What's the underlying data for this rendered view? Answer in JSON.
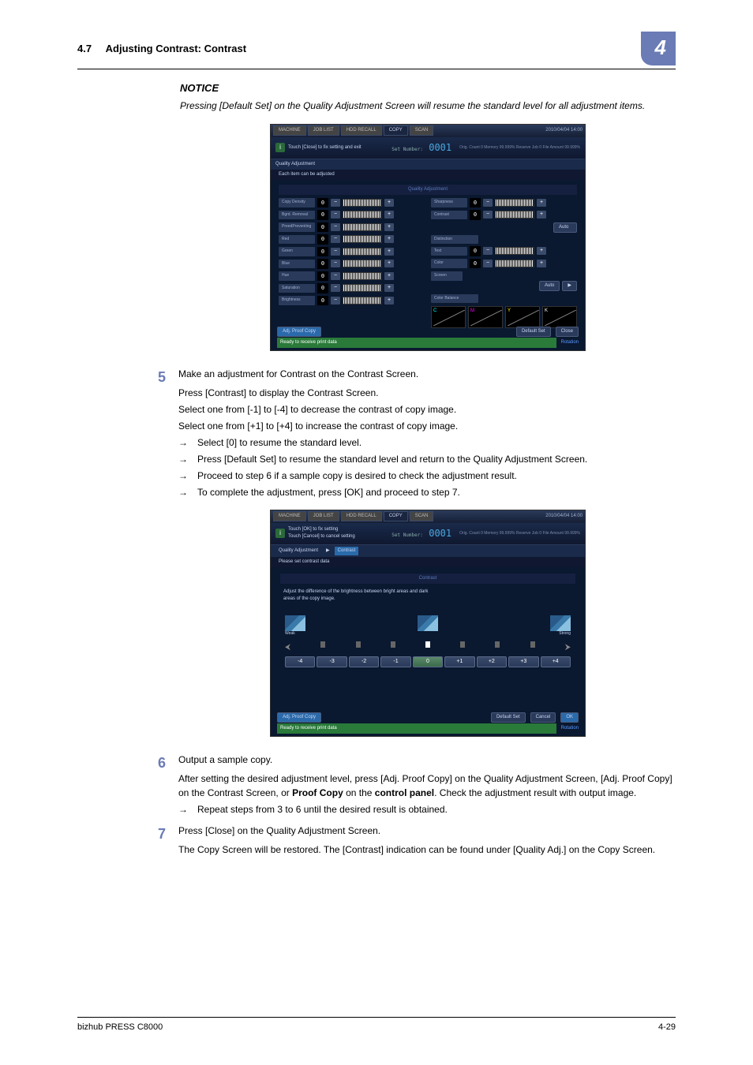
{
  "header": {
    "section": "4.7",
    "title": "Adjusting Contrast: Contrast",
    "chapter": "4"
  },
  "notice": {
    "title": "NOTICE",
    "body": "Pressing [Default Set] on the Quality Adjustment Screen will resume the standard level for all adjustment items."
  },
  "screenshot1": {
    "tabs": [
      "MACHINE",
      "JOB LIST",
      "HDD RECALL",
      "COPY",
      "SCAN"
    ],
    "timestamp": "2010/04/04 14:00",
    "info_text": "Touch [Close] to fix setting and exit",
    "set_number_label": "Set Number:",
    "set_number": "0001",
    "stats": "Orig. Count       0  Memory        99.999%\nReserve Job     0  File Amount  99.999%",
    "qa_label": "Quality Adjustment",
    "sub_label": "Each item can be adjusted",
    "section_title": "Quality Adjustment",
    "left_items": [
      {
        "label": "Copy Density",
        "val": "0"
      },
      {
        "label": "Bgrd. Removal",
        "val": "0"
      },
      {
        "label": "PreedPreventing",
        "val": "0"
      },
      {
        "label": "Red",
        "val": "0"
      },
      {
        "label": "Green",
        "val": "0"
      },
      {
        "label": "Blue",
        "val": "0"
      },
      {
        "label": "Hue",
        "val": "0"
      },
      {
        "label": "Saturation",
        "val": "0"
      },
      {
        "label": "Brightness",
        "val": "0"
      }
    ],
    "right_items": [
      {
        "label": "Sharpness",
        "val": "0"
      },
      {
        "label": "Contrast",
        "val": "0"
      }
    ],
    "auto_btn": "Auto",
    "distinction": "Distinction",
    "dist_items": [
      {
        "label": "Text",
        "val": "0"
      },
      {
        "label": "Color",
        "val": "0"
      }
    ],
    "screen": "Screen",
    "screen_auto": "Auto",
    "color_balance": "Color Balance",
    "balance_letters": [
      "C",
      "M",
      "Y",
      "K"
    ],
    "footer_buttons": [
      "Adj. Proof Copy",
      "Default Set",
      "Close"
    ],
    "ready": "Ready to receive print data",
    "rotation": "Rotation"
  },
  "step5": {
    "num": "5",
    "title": "Make an adjustment for Contrast on the Contrast Screen.",
    "lines": [
      "Press [Contrast] to display the Contrast Screen.",
      "Select one from [-1] to [-4] to decrease the contrast of copy image.",
      "Select one from [+1] to [+4] to increase the contrast of copy image."
    ],
    "arrows": [
      "Select [0] to resume the standard level.",
      "Press [Default Set] to resume the standard level and return to the Quality Adjustment Screen.",
      "Proceed to step 6 if a sample copy is desired to check the adjustment result.",
      "To complete the adjustment, press [OK] and proceed to step 7."
    ]
  },
  "screenshot2": {
    "info_text": "Touch [OK] to fix setting\nTouch [Cancel] to cancel setting",
    "breadcrumb": [
      "Quality Adjustment",
      "▶",
      "Contrast"
    ],
    "sub_label": "Please set contrast data",
    "section_title": "Contrast",
    "desc": "Adjust the difference of the brightness between bright areas and dark\nareas of the copy image.",
    "weak": "Weak",
    "strong": "Strong",
    "buttons": [
      "-4",
      "-3",
      "-2",
      "-1",
      "0",
      "+1",
      "+2",
      "+3",
      "+4"
    ],
    "footer_buttons": [
      "Adj. Proof Copy",
      "Default Set",
      "Cancel",
      "OK"
    ],
    "ready": "Ready to receive print data",
    "rotation": "Rotation"
  },
  "step6": {
    "num": "6",
    "title": "Output a sample copy.",
    "body_parts": [
      "After setting the desired adjustment level, press [Adj. Proof Copy] on the Quality Adjustment Screen, [Adj. Proof Copy] on the Contrast Screen, or ",
      "Proof Copy",
      " on the ",
      "control panel",
      ". Check the adjustment result with output image."
    ],
    "arrows": [
      "Repeat steps from 3 to 6 until the desired result is obtained."
    ]
  },
  "step7": {
    "num": "7",
    "title": "Press [Close] on the Quality Adjustment Screen.",
    "body": "The Copy Screen will be restored. The [Contrast] indication can be found under [Quality Adj.] on the Copy Screen."
  },
  "footer": {
    "left": "bizhub PRESS C8000",
    "right": "4-29"
  }
}
